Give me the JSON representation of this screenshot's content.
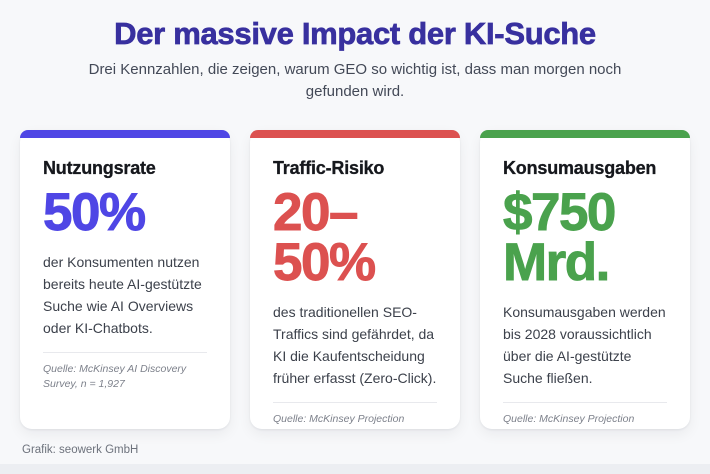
{
  "page": {
    "title": "Der massive Impact der KI-Suche",
    "subtitle": "Drei Kennzahlen, die zeigen, warum GEO so wichtig ist, dass man morgen noch gefunden wird.",
    "footer_credit": "Grafik: seowerk GmbH"
  },
  "colors": {
    "background": "#f7f8fa",
    "title": "#38309f",
    "accent_blue": "#4f46e5",
    "accent_red": "#dc5150",
    "accent_green": "#4aa24d",
    "body_text": "#3c414b",
    "source_text": "#7d818b"
  },
  "cards": [
    {
      "label": "Nutzungsrate",
      "value": [
        "50%"
      ],
      "accent": "#4f46e5",
      "description": "der Konsumenten nutzen bereits heute AI-gestützte Suche wie AI Overviews oder KI-Chatbots.",
      "source": "Quelle: McKinsey AI Discovery Survey, n = 1,927"
    },
    {
      "label": "Traffic-Risiko",
      "value": [
        "20–",
        "50%"
      ],
      "accent": "#dc5150",
      "description": "des traditionellen SEO-Traffics sind gefährdet, da KI die Kaufentscheidung früher erfasst (Zero-Click).",
      "source": "Quelle: McKinsey Projection"
    },
    {
      "label": "Konsumausgaben",
      "value": [
        "$750",
        "Mrd."
      ],
      "accent": "#4aa24d",
      "description": "Konsumausgaben werden bis 2028 voraussichtlich über die AI-gestützte Suche fließen.",
      "source": "Quelle: McKinsey Projection"
    }
  ],
  "chart_data": {
    "type": "table",
    "title": "Der massive Impact der KI-Suche",
    "subtitle": "Drei Kennzahlen, die zeigen, warum GEO so wichtig ist, dass man morgen noch gefunden wird.",
    "categories": [
      "Nutzungsrate",
      "Traffic-Risiko",
      "Konsumausgaben"
    ],
    "values": [
      "50%",
      "20–50%",
      "$750 Mrd."
    ],
    "notes": [
      "der Konsumenten nutzen bereits heute AI-gestützte Suche wie AI Overviews oder KI-Chatbots.",
      "des traditionellen SEO-Traffics sind gefährdet, da KI die Kaufentscheidung früher erfasst (Zero-Click).",
      "Konsumausgaben werden bis 2028 voraussichtlich über die AI-gestützte Suche fließen."
    ],
    "sources": [
      "Quelle: McKinsey AI Discovery Survey, n = 1,927",
      "Quelle: McKinsey Projection",
      "Quelle: McKinsey Projection"
    ],
    "credit": "Grafik: seowerk GmbH"
  }
}
